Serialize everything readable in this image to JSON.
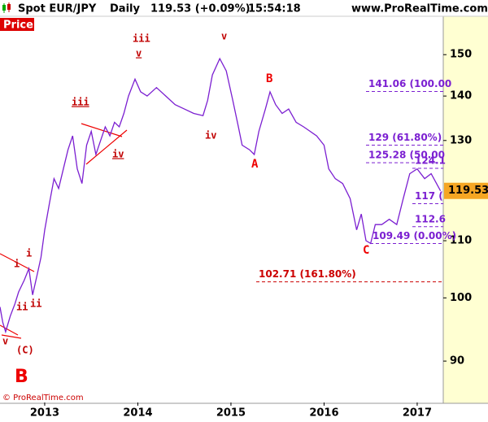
{
  "header": {
    "symbol": "Spot EUR/JPY",
    "period": "Daily",
    "quote": "119.53 (+0.09%)",
    "time": "15:54:18",
    "site": "www.ProRealTime.com"
  },
  "chart_data": {
    "type": "line",
    "panel_label": "Price",
    "copyright": "© ProRealTime.com",
    "color": "#7b1fd1",
    "log_scale": true,
    "x": [
      2012.52,
      2012.55,
      2012.58,
      2012.63,
      2012.68,
      2012.72,
      2012.78,
      2012.83,
      2012.87,
      2012.92,
      2012.96,
      2013.0,
      2013.05,
      2013.1,
      2013.15,
      2013.2,
      2013.25,
      2013.3,
      2013.35,
      2013.4,
      2013.45,
      2013.5,
      2013.55,
      2013.6,
      2013.65,
      2013.7,
      2013.75,
      2013.8,
      2013.85,
      2013.9,
      2013.97,
      2014.03,
      2014.1,
      2014.2,
      2014.3,
      2014.4,
      2014.5,
      2014.6,
      2014.7,
      2014.75,
      2014.8,
      2014.88,
      2014.95,
      2015.02,
      2015.08,
      2015.12,
      2015.2,
      2015.25,
      2015.3,
      2015.37,
      2015.42,
      2015.48,
      2015.55,
      2015.62,
      2015.7,
      2015.78,
      2015.85,
      2015.92,
      2016.0,
      2016.05,
      2016.12,
      2016.2,
      2016.28,
      2016.35,
      2016.4,
      2016.45,
      2016.5,
      2016.55,
      2016.62,
      2016.7,
      2016.78,
      2016.85,
      2016.92,
      2017.0,
      2017.08,
      2017.15,
      2017.25
    ],
    "values": [
      98.5,
      96,
      94.5,
      97,
      99,
      101,
      103,
      105,
      100.5,
      104,
      107,
      112,
      117,
      122,
      120,
      124,
      128,
      131,
      124,
      121,
      129,
      132,
      127,
      130,
      133,
      131,
      134,
      133,
      136,
      140,
      144,
      141,
      140,
      142,
      140,
      138,
      137,
      136,
      135.5,
      139,
      145,
      149,
      146,
      139,
      133,
      129,
      128,
      127,
      132,
      137,
      141,
      138,
      136,
      137,
      134,
      133,
      132,
      131,
      129,
      124,
      122,
      121,
      118,
      112,
      115,
      110,
      109.5,
      113,
      113,
      114,
      113,
      118,
      123,
      124,
      122,
      123,
      119.53
    ],
    "xlim": [
      2012.52,
      2017.28
    ],
    "xticks": [
      2013,
      2014,
      2015,
      2016,
      2017
    ],
    "ylim": [
      84,
      161
    ],
    "yticks": [
      90,
      100,
      110,
      130,
      140,
      150
    ],
    "levels": [
      {
        "value": 141.06,
        "label": "141.06 (100.00"
      },
      {
        "value": 129,
        "label": "129 (61.80%)"
      },
      {
        "value": 125.28,
        "label": "125.28 (50.00"
      },
      {
        "value": 124.1,
        "label": "124.1"
      },
      {
        "value": 117,
        "label": "117 ("
      },
      {
        "value": 112.6,
        "label": "112.6"
      },
      {
        "value": 109.49,
        "label": "109.49 (0.00%)"
      },
      {
        "value": 102.71,
        "label": "102.71 (161.80%)"
      }
    ],
    "annotations": [
      "v",
      "(C)",
      "B",
      "i",
      "i",
      "ii",
      "ii",
      "iii",
      "v",
      "iii",
      "iv",
      "v",
      "iv",
      "A",
      "B",
      "C"
    ]
  }
}
